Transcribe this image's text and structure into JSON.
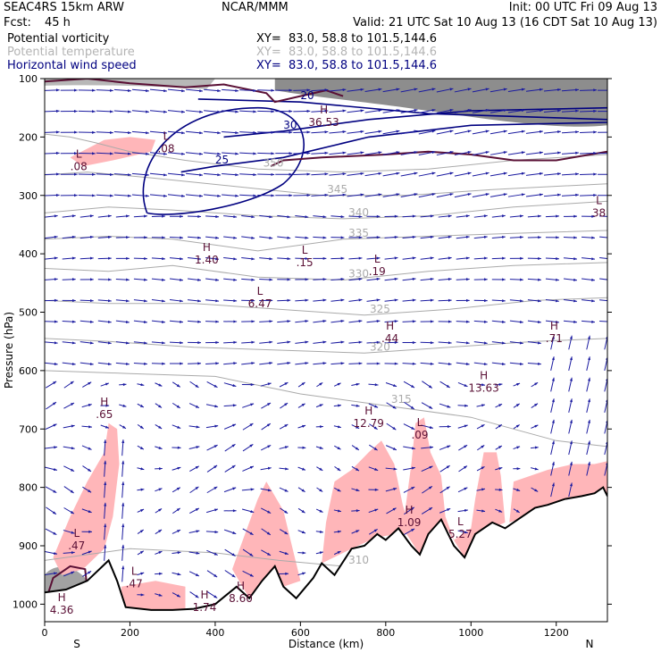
{
  "header": {
    "model": "SEAC4RS 15km ARW",
    "fcst_label": "Fcst:",
    "fcst_value": "45 h",
    "org": "NCAR/MMM",
    "init": "Init: 00 UTC Fri 09 Aug 13",
    "valid": "Valid: 21 UTC Sat 10 Aug 13 (16 CDT Sat 10 Aug 13)",
    "fields": [
      {
        "name": "Potential vorticity",
        "xy": "XY=  83.0, 58.8 to 101.5,144.6",
        "color": "#000000"
      },
      {
        "name": "Potential temperature",
        "xy": "XY=  83.0, 58.8 to 101.5,144.6",
        "color": "#b4b4b4"
      },
      {
        "name": "Horizontal wind speed",
        "xy": "XY=  83.0, 58.8 to 101.5,144.6",
        "color": "#000080"
      }
    ]
  },
  "colors": {
    "pv_fill": "#ffb6b9",
    "pv_line": "#5a1035",
    "theta_line": "#aaaaaa",
    "wind_line": "#000080",
    "vector": "#1a1aa0",
    "high_pv": "#303030"
  },
  "chart_data": {
    "type": "cross-section",
    "xlabel": "Distance (km)",
    "ylabel": "Pressure (hPa)",
    "xlim": [
      0,
      1320
    ],
    "ylim": [
      1030,
      100
    ],
    "x_ticks": [
      0,
      200,
      400,
      600,
      800,
      1000,
      1200
    ],
    "y_ticks": [
      100,
      200,
      300,
      400,
      500,
      600,
      700,
      800,
      900,
      1000
    ],
    "x_end_labels": [
      "S",
      "N"
    ],
    "theta_contours": [
      {
        "label": "350",
        "points": [
          [
            0,
            195
          ],
          [
            60,
            200
          ],
          [
            120,
            210
          ],
          [
            200,
            225
          ],
          [
            330,
            240
          ],
          [
            500,
            255
          ],
          [
            700,
            260
          ],
          [
            900,
            255
          ],
          [
            1100,
            240
          ],
          [
            1320,
            230
          ]
        ]
      },
      {
        "label": "345",
        "points": [
          [
            0,
            265
          ],
          [
            100,
            260
          ],
          [
            250,
            270
          ],
          [
            450,
            285
          ],
          [
            650,
            300
          ],
          [
            850,
            300
          ],
          [
            1050,
            290
          ],
          [
            1320,
            280
          ]
        ]
      },
      {
        "label": "340",
        "points": [
          [
            0,
            330
          ],
          [
            150,
            320
          ],
          [
            300,
            325
          ],
          [
            500,
            335
          ],
          [
            700,
            340
          ],
          [
            900,
            335
          ],
          [
            1100,
            320
          ],
          [
            1320,
            310
          ]
        ]
      },
      {
        "label": "335",
        "points": [
          [
            0,
            375
          ],
          [
            150,
            370
          ],
          [
            300,
            375
          ],
          [
            500,
            395
          ],
          [
            700,
            375
          ],
          [
            900,
            370
          ],
          [
            1100,
            365
          ],
          [
            1320,
            360
          ]
        ]
      },
      {
        "label": "330",
        "points": [
          [
            0,
            425
          ],
          [
            150,
            430
          ],
          [
            300,
            420
          ],
          [
            500,
            440
          ],
          [
            700,
            445
          ],
          [
            900,
            430
          ],
          [
            1100,
            420
          ],
          [
            1320,
            415
          ]
        ]
      },
      {
        "label": "325",
        "points": [
          [
            0,
            480
          ],
          [
            150,
            485
          ],
          [
            350,
            485
          ],
          [
            550,
            495
          ],
          [
            750,
            505
          ],
          [
            950,
            495
          ],
          [
            1150,
            480
          ],
          [
            1320,
            475
          ]
        ]
      },
      {
        "label": "320",
        "points": [
          [
            0,
            545
          ],
          [
            150,
            550
          ],
          [
            350,
            560
          ],
          [
            550,
            565
          ],
          [
            750,
            570
          ],
          [
            950,
            560
          ],
          [
            1150,
            550
          ],
          [
            1320,
            545
          ]
        ]
      },
      {
        "label": "315",
        "points": [
          [
            0,
            600
          ],
          [
            200,
            605
          ],
          [
            400,
            610
          ],
          [
            600,
            640
          ],
          [
            800,
            660
          ],
          [
            1000,
            680
          ],
          [
            1100,
            700
          ],
          [
            1200,
            720
          ],
          [
            1320,
            730
          ]
        ]
      },
      {
        "label": "310",
        "points": [
          [
            0,
            925
          ],
          [
            200,
            905
          ],
          [
            400,
            912
          ],
          [
            550,
            925
          ],
          [
            700,
            935
          ],
          [
            900,
            950
          ],
          [
            1100,
            960
          ],
          [
            1320,
            950
          ]
        ]
      }
    ],
    "wind_contours": [
      {
        "label": "20",
        "points": [
          [
            360,
            135
          ],
          [
            600,
            140
          ],
          [
            900,
            160
          ],
          [
            1320,
            170
          ]
        ]
      },
      {
        "label": "25",
        "points": [
          [
            320,
            260
          ],
          [
            400,
            250
          ],
          [
            560,
            235
          ],
          [
            760,
            200
          ],
          [
            1000,
            180
          ],
          [
            1320,
            175
          ]
        ]
      },
      {
        "label": "30",
        "points": [
          [
            420,
            200
          ],
          [
            560,
            190
          ],
          [
            760,
            170
          ],
          [
            1000,
            155
          ],
          [
            1320,
            150
          ]
        ]
      }
    ],
    "extremes": [
      {
        "kind": "L",
        "value": ".08",
        "x": 80,
        "p": 235
      },
      {
        "kind": "L",
        "value": ".08",
        "x": 285,
        "p": 205
      },
      {
        "kind": "H",
        "value": "36.53",
        "x": 655,
        "p": 160
      },
      {
        "kind": "H",
        "value": "1.40",
        "x": 380,
        "p": 395
      },
      {
        "kind": "L",
        "value": ".15",
        "x": 610,
        "p": 400
      },
      {
        "kind": "L",
        "value": ".19",
        "x": 780,
        "p": 415
      },
      {
        "kind": "L",
        "value": "6.47",
        "x": 505,
        "p": 470
      },
      {
        "kind": "H",
        "value": ".44",
        "x": 810,
        "p": 530
      },
      {
        "kind": "H",
        "value": ".71",
        "x": 1195,
        "p": 530
      },
      {
        "kind": "H",
        "value": "13.63",
        "x": 1030,
        "p": 615
      },
      {
        "kind": "H",
        "value": ".65",
        "x": 140,
        "p": 660
      },
      {
        "kind": "H",
        "value": "12.79",
        "x": 760,
        "p": 675
      },
      {
        "kind": "L",
        "value": ".09",
        "x": 880,
        "p": 695
      },
      {
        "kind": "L",
        "value": "38",
        "x": 1300,
        "p": 315
      },
      {
        "kind": "H",
        "value": "1.09",
        "x": 855,
        "p": 845
      },
      {
        "kind": "L",
        "value": "5.27",
        "x": 975,
        "p": 865
      },
      {
        "kind": "L",
        "value": ".47",
        "x": 75,
        "p": 885
      },
      {
        "kind": "L",
        "value": ".47",
        "x": 210,
        "p": 950
      },
      {
        "kind": "H",
        "value": "1.74",
        "x": 375,
        "p": 990
      },
      {
        "kind": "H",
        "value": "8.60",
        "x": 460,
        "p": 975
      },
      {
        "kind": "H",
        "value": "4.36",
        "x": 40,
        "p": 995
      }
    ],
    "terrain": [
      [
        0,
        980
      ],
      [
        50,
        975
      ],
      [
        100,
        960
      ],
      [
        150,
        925
      ],
      [
        170,
        960
      ],
      [
        190,
        1005
      ],
      [
        250,
        1010
      ],
      [
        300,
        1010
      ],
      [
        350,
        1008
      ],
      [
        400,
        1000
      ],
      [
        450,
        970
      ],
      [
        480,
        990
      ],
      [
        510,
        960
      ],
      [
        540,
        935
      ],
      [
        560,
        970
      ],
      [
        590,
        990
      ],
      [
        630,
        955
      ],
      [
        650,
        930
      ],
      [
        680,
        950
      ],
      [
        720,
        905
      ],
      [
        750,
        900
      ],
      [
        780,
        880
      ],
      [
        800,
        890
      ],
      [
        830,
        870
      ],
      [
        860,
        900
      ],
      [
        880,
        915
      ],
      [
        900,
        880
      ],
      [
        930,
        855
      ],
      [
        960,
        900
      ],
      [
        985,
        920
      ],
      [
        1010,
        880
      ],
      [
        1050,
        860
      ],
      [
        1080,
        870
      ],
      [
        1110,
        855
      ],
      [
        1150,
        835
      ],
      [
        1180,
        830
      ],
      [
        1220,
        820
      ],
      [
        1260,
        815
      ],
      [
        1290,
        810
      ],
      [
        1310,
        800
      ],
      [
        1320,
        815
      ]
    ]
  }
}
